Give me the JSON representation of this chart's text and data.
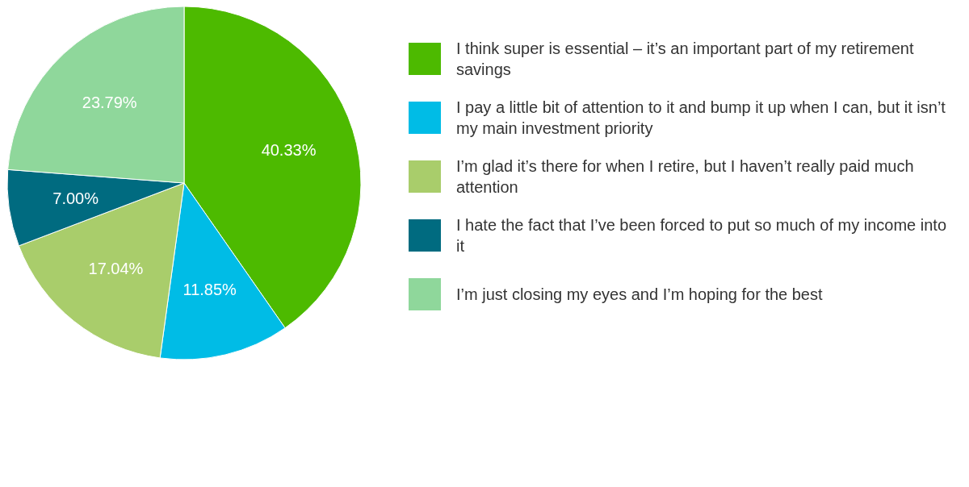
{
  "chart_data": {
    "type": "pie",
    "categories": [
      "I think super is essential – it’s an important part of my retirement savings",
      "I pay a little bit of attention to it and bump it up when I can, but it isn’t my main investment priority",
      "I’m glad it’s there for when I retire, but I haven’t really paid much attention",
      "I hate the fact that I’ve been forced to put so much of my income into it",
      "I’m just closing my eyes and I’m hoping for the best"
    ],
    "values": [
      40.33,
      11.85,
      17.04,
      7.0,
      23.79
    ],
    "value_labels": [
      "40.33%",
      "11.85%",
      "17.04%",
      "7.00%",
      "23.79%"
    ],
    "colors": [
      "#4dba00",
      "#00bce6",
      "#a9cd6b",
      "#006b80",
      "#8fd79b"
    ],
    "legend": "right"
  }
}
